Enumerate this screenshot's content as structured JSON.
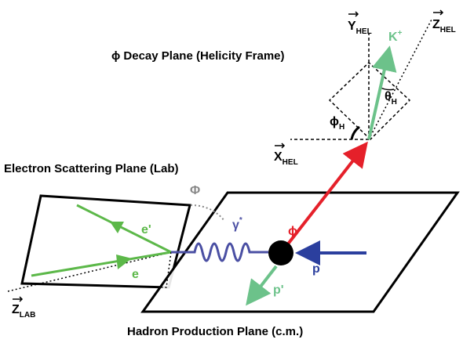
{
  "titles": {
    "decay_plane": "ϕ Decay Plane (Helicity Frame)",
    "scattering_plane": "Electron Scattering Plane (Lab)",
    "production_plane": "Hadron Production Plane (c.m.)"
  },
  "labels": {
    "y_hel": {
      "symbol": "Y",
      "sub": "HEL"
    },
    "z_hel": {
      "symbol": "Z",
      "sub": "HEL"
    },
    "x_hel": {
      "symbol": "X",
      "sub": "HEL"
    },
    "z_lab": {
      "symbol": "Z",
      "sub": "LAB"
    },
    "kaon": {
      "symbol": "K",
      "sup": "+"
    },
    "theta_h": {
      "symbol": "θ",
      "sub": "H"
    },
    "phi_h": {
      "symbol": "ϕ",
      "sub": "H"
    },
    "big_phi": "Φ",
    "photon": {
      "symbol": "γ",
      "sup": "*"
    },
    "e_prime": "e'",
    "e": "e",
    "phi_meson": "ϕ",
    "proton": "p",
    "p_prime": "p'"
  }
}
